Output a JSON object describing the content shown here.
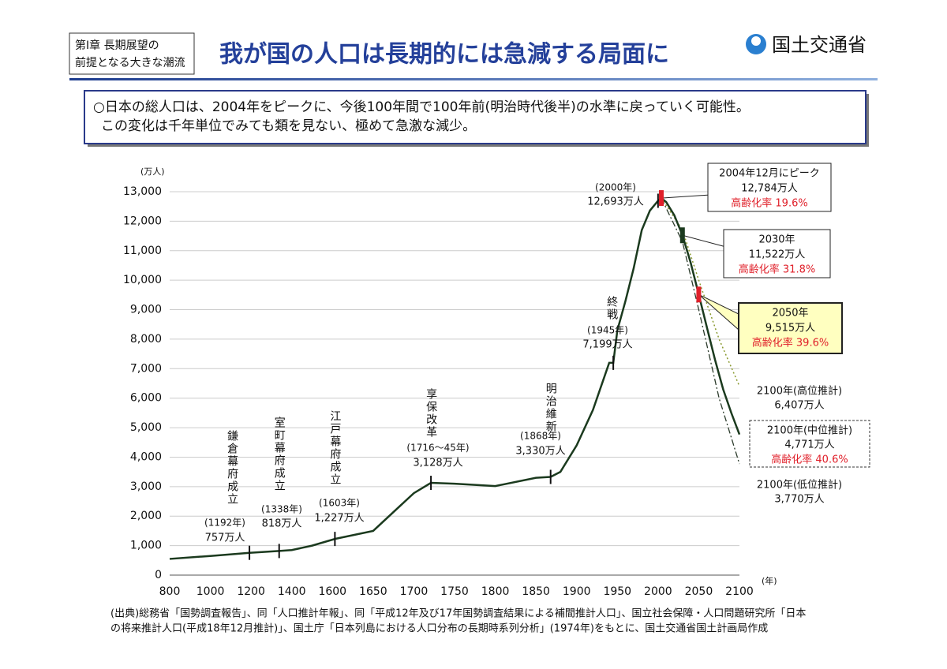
{
  "header": {
    "badge": [
      "第Ⅰ章 長期展望の",
      "前提となる大きな潮流"
    ],
    "title": "我が国の人口は長期的には急減する局面に",
    "logo": "国土交通省"
  },
  "summary": [
    "○日本の総人口は、2004年をピークに、今後100年間で100年前(明治時代後半)の水準に戻っていく可能性。",
    "この変化は千年単位でみても類を見ない、極めて急激な減少。"
  ],
  "chart_data": {
    "type": "line",
    "y_unit": "(万人)",
    "x_unit": "(年)",
    "xlim": [
      800,
      2100
    ],
    "xticks": [
      800,
      1000,
      1200,
      1400,
      1600,
      1650,
      1700,
      1750,
      1800,
      1850,
      1900,
      1950,
      2000,
      2050,
      2100
    ],
    "ylim": [
      0,
      13000
    ],
    "yticks": [
      0,
      {
        "value": 1000,
        "label": "1,000"
      },
      {
        "value": 2000,
        "label": "2,000"
      },
      {
        "value": 3000,
        "label": "3,000"
      },
      {
        "value": 4000,
        "label": "4,000"
      },
      {
        "value": 5000,
        "label": "5,000"
      },
      {
        "value": 6000,
        "label": "6,000"
      },
      {
        "value": 7000,
        "label": "7,000"
      },
      {
        "value": 8000,
        "label": "8,000"
      },
      {
        "value": 9000,
        "label": "9,000"
      },
      {
        "value": 10000,
        "label": "10,000"
      },
      {
        "value": 11000,
        "label": "11,000"
      },
      {
        "value": 12000,
        "label": "12,000"
      },
      {
        "value": 13000,
        "label": "13,000"
      }
    ],
    "grid": true,
    "series": [
      {
        "color": "#1b3a1e",
        "style": "solid",
        "x": [
          800,
          1000,
          1192,
          1338,
          1400,
          1500,
          1603,
          1650,
          1700,
          1721,
          1750,
          1800,
          1850,
          1868,
          1880,
          1900,
          1920,
          1940,
          1945,
          1950,
          1960,
          1970,
          1980,
          1990,
          2000,
          2004,
          2010,
          2020,
          2030,
          2040,
          2050,
          2060,
          2070,
          2080,
          2090,
          2100
        ],
        "values": [
          550,
          650,
          757,
          818,
          850,
          1000,
          1227,
          1500,
          2780,
          3128,
          3100,
          3020,
          3300,
          3330,
          3500,
          4400,
          5600,
          7200,
          7199,
          8300,
          9300,
          10400,
          11700,
          12360,
          12693,
          12784,
          12650,
          12200,
          11522,
          10600,
          9515,
          8400,
          7300,
          6300,
          5500,
          4771
        ]
      },
      {
        "color": "#8a9a30",
        "style": "dotted",
        "x": [
          2004,
          2030,
          2050,
          2075,
          2100
        ],
        "values": [
          12784,
          11700,
          10000,
          8000,
          6407
        ]
      },
      {
        "color": "#2a3a2a",
        "style": "dashdot",
        "x": [
          2004,
          2030,
          2050,
          2075,
          2100
        ],
        "values": [
          12784,
          11300,
          9000,
          6000,
          3770
        ]
      }
    ],
    "events": [
      {
        "label": "鎌倉幕府成立",
        "year_label": "(1192年)",
        "pop_label": "757万人",
        "year": 1192,
        "value": 757
      },
      {
        "label": "室町幕府成立",
        "year_label": "(1338年)",
        "pop_label": "818万人",
        "year": 1338,
        "value": 818
      },
      {
        "label": "江戸幕府成立",
        "year_label": "(1603年)",
        "pop_label": "1,227万人",
        "year": 1603,
        "value": 1227
      },
      {
        "label": "享保改革",
        "year_label": "(1716～45年)",
        "pop_label": "3,128万人",
        "year": 1721,
        "value": 3128
      },
      {
        "label": "明治維新",
        "year_label": "(1868年)",
        "pop_label": "3,330万人",
        "year": 1868,
        "value": 3330
      },
      {
        "label": "終戦",
        "year_label": "(1945年)",
        "pop_label": "7,199万人",
        "year": 1945,
        "value": 7199
      },
      {
        "year_label": "(2000年)",
        "pop_label": "12,693万人",
        "year": 2000,
        "value": 12693
      }
    ],
    "callouts": [
      {
        "head": "2004年12月にピーク",
        "pop": "12,784万人",
        "aging": "高齢化率 19.6%",
        "year": 2004,
        "value": 12784,
        "marker_color": "#e0202a"
      },
      {
        "head": "2030年",
        "pop": "11,522万人",
        "aging": "高齢化率 31.8%",
        "year": 2030,
        "value": 11522,
        "marker_color": "#1b3a1e"
      },
      {
        "head": "2050年",
        "pop": "9,515万人",
        "aging": "高齢化率 39.6%",
        "year": 2050,
        "value": 9515,
        "marker_color": "#e0202a"
      }
    ],
    "projections": [
      {
        "head": "2100年(高位推計)",
        "pop": "6,407万人"
      },
      {
        "head": "2100年(中位推計)",
        "pop": "4,771万人",
        "aging": "高齢化率 40.6%"
      },
      {
        "head": "2100年(低位推計)",
        "pop": "3,770万人"
      }
    ]
  },
  "source": [
    "(出典)総務省「国勢調査報告」、同「人口推計年報」、同「平成12年及び17年国勢調査結果による補間推計人口」、国立社会保障・人口問題研究所「日本",
    "の将来推計人口(平成18年12月推計)」、国土庁「日本列島における人口分布の長期時系列分析」(1974年)をもとに、国土交通省国土計画局作成"
  ]
}
